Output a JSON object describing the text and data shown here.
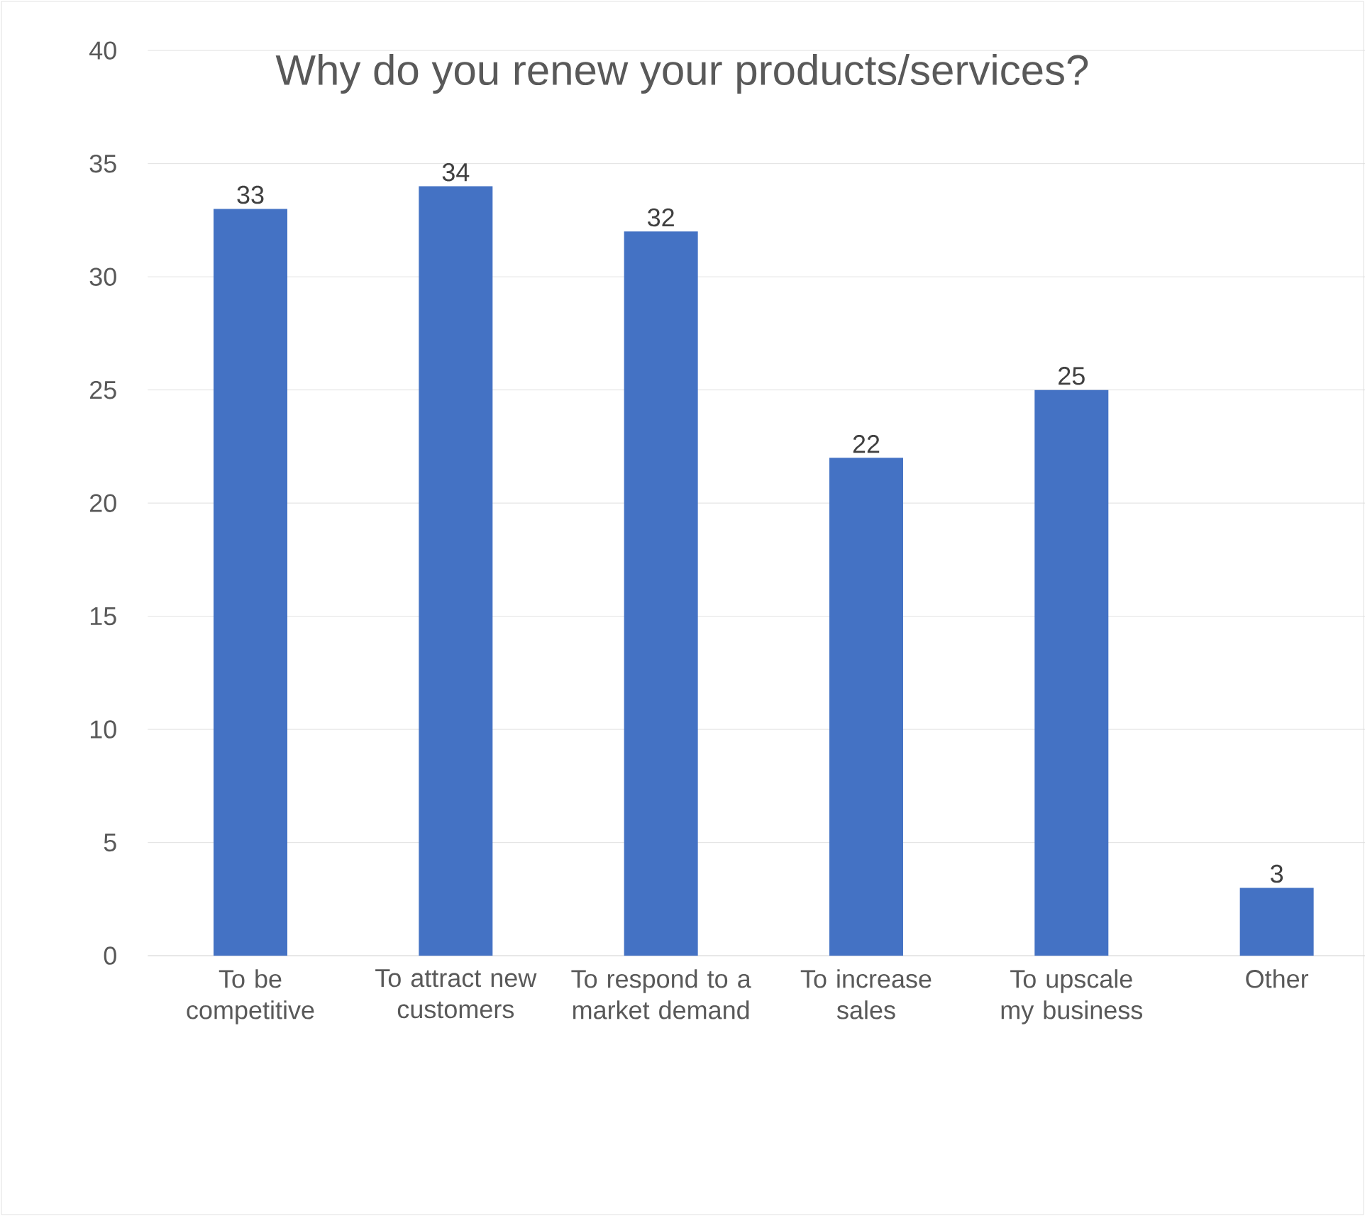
{
  "chart_data": {
    "type": "bar",
    "title": "Why do you renew your products/services?",
    "categories": [
      "To be competitive",
      "To attract new customers",
      "To respond to a market demand",
      "To increase sales",
      "To upscale my business",
      "Other"
    ],
    "values": [
      33,
      34,
      32,
      22,
      25,
      3
    ],
    "color": "#4472c4",
    "ylim": [
      0,
      40
    ],
    "yticks": [
      0,
      5,
      10,
      15,
      20,
      25,
      30,
      35,
      40
    ],
    "grid": "y",
    "data_labels": true
  }
}
